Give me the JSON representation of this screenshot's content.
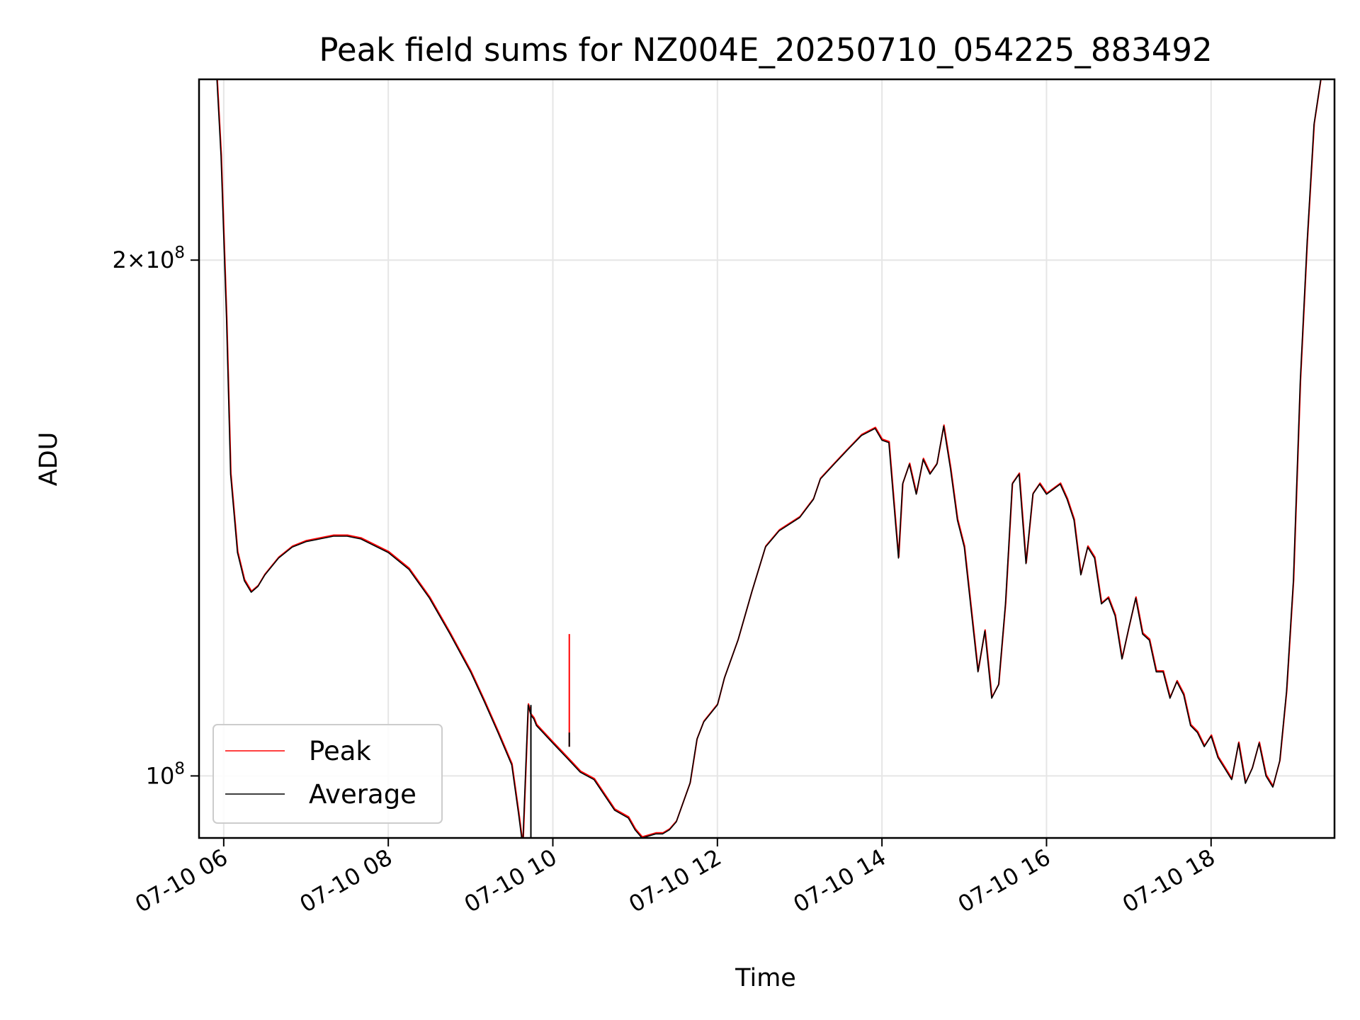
{
  "chart_data": {
    "type": "line",
    "title": "Peak field sums for NZ004E_20250710_054225_883492",
    "xlabel": "Time",
    "ylabel": "ADU",
    "yscale": "log",
    "xlim": [
      "2025-07-10T05:42",
      "2025-07-10T19:30"
    ],
    "ylim": [
      92000000,
      255000000
    ],
    "grid": true,
    "legend_position": "lower-left",
    "x_ticks": [
      "07-10 06",
      "07-10 08",
      "07-10 10",
      "07-10 12",
      "07-10 14",
      "07-10 16",
      "07-10 18"
    ],
    "x_tick_times": [
      "2025-07-10T06:00",
      "2025-07-10T08:00",
      "2025-07-10T10:00",
      "2025-07-10T12:00",
      "2025-07-10T14:00",
      "2025-07-10T16:00",
      "2025-07-10T18:00"
    ],
    "y_ticks": [
      {
        "value": 200000000,
        "mantissa": "2",
        "exp": "8"
      },
      {
        "value": 100000000,
        "mantissa": "",
        "exp": "8"
      }
    ],
    "x": [
      "05:55",
      "05:58",
      "06:02",
      "06:05",
      "06:10",
      "06:15",
      "06:20",
      "06:25",
      "06:30",
      "06:40",
      "06:50",
      "07:00",
      "07:10",
      "07:20",
      "07:30",
      "07:40",
      "08:00",
      "08:15",
      "08:30",
      "08:45",
      "09:00",
      "09:10",
      "09:20",
      "09:30",
      "09:35",
      "09:38",
      "09:42",
      "09:44",
      "09:46",
      "09:48",
      "10:00",
      "10:10",
      "10:20",
      "10:30",
      "10:45",
      "10:55",
      "11:00",
      "11:05",
      "11:15",
      "11:20",
      "11:25",
      "11:30",
      "11:40",
      "11:45",
      "11:50",
      "12:00",
      "12:05",
      "12:15",
      "12:25",
      "12:35",
      "12:45",
      "13:00",
      "13:10",
      "13:15",
      "13:25",
      "13:35",
      "13:45",
      "13:55",
      "14:00",
      "14:05",
      "14:10",
      "14:12",
      "14:15",
      "14:20",
      "14:25",
      "14:30",
      "14:35",
      "14:40",
      "14:45",
      "14:50",
      "14:55",
      "15:00",
      "15:05",
      "15:10",
      "15:15",
      "15:20",
      "15:25",
      "15:30",
      "15:35",
      "15:40",
      "15:45",
      "15:50",
      "15:55",
      "16:00",
      "16:05",
      "16:10",
      "16:15",
      "16:20",
      "16:25",
      "16:30",
      "16:35",
      "16:40",
      "16:45",
      "16:50",
      "16:55",
      "17:00",
      "17:05",
      "17:10",
      "17:15",
      "17:20",
      "17:25",
      "17:30",
      "17:35",
      "17:40",
      "17:45",
      "17:50",
      "17:55",
      "18:00",
      "18:05",
      "18:10",
      "18:15",
      "18:20",
      "18:25",
      "18:30",
      "18:35",
      "18:40",
      "18:45",
      "18:50",
      "18:55",
      "19:00",
      "19:05",
      "19:10",
      "19:15",
      "19:20",
      "19:25"
    ],
    "series": [
      {
        "name": "Peak",
        "color": "#ff0000",
        "values": [
          255000000,
          230000000,
          185000000,
          150000000,
          135000000,
          130000000,
          128000000,
          129000000,
          131000000,
          134000000,
          136000000,
          137000000,
          137500000,
          138000000,
          138000000,
          137500000,
          135000000,
          132000000,
          127000000,
          121000000,
          115000000,
          110500000,
          106000000,
          101500000,
          95000000,
          91000000,
          110000000,
          108500000,
          108000000,
          107000000,
          104500000,
          102500000,
          100500000,
          99500000,
          95500000,
          94500000,
          93000000,
          92000000,
          92500000,
          92500000,
          93000000,
          94000000,
          99000000,
          105000000,
          107500000,
          110000000,
          114000000,
          120000000,
          128000000,
          136000000,
          139000000,
          141500000,
          145000000,
          149000000,
          152000000,
          155000000,
          158000000,
          159500000,
          157000000,
          156500000,
          140000000,
          134000000,
          148000000,
          152000000,
          146000000,
          153000000,
          150000000,
          152000000,
          160000000,
          151000000,
          141000000,
          136000000,
          125000000,
          115000000,
          121500000,
          111000000,
          113000000,
          126000000,
          148000000,
          150000000,
          133000000,
          146000000,
          148000000,
          146000000,
          147000000,
          148000000,
          145000000,
          141000000,
          131000000,
          136000000,
          134000000,
          126000000,
          127000000,
          124000000,
          117000000,
          122000000,
          127000000,
          121000000,
          120000000,
          115000000,
          115000000,
          111000000,
          113500000,
          111500000,
          107000000,
          106000000,
          104000000,
          105500000,
          102500000,
          101000000,
          99500000,
          104500000,
          99000000,
          101000000,
          104500000,
          100000000,
          98500000,
          102000000,
          112000000,
          130000000,
          170000000,
          205000000,
          240000000,
          255000000,
          255000000
        ]
      },
      {
        "name": "Average",
        "color": "#000000",
        "values": [
          255000000,
          230000000,
          185000000,
          150000000,
          135000000,
          130000000,
          128000000,
          129000000,
          131000000,
          134000000,
          136000000,
          137000000,
          137500000,
          138000000,
          138000000,
          137500000,
          135000000,
          132000000,
          127000000,
          121000000,
          115000000,
          110500000,
          106000000,
          101500000,
          95000000,
          91000000,
          110000000,
          108500000,
          108000000,
          107000000,
          104500000,
          102500000,
          100500000,
          99500000,
          95500000,
          94500000,
          93000000,
          92000000,
          92500000,
          92500000,
          93000000,
          94000000,
          99000000,
          105000000,
          107500000,
          110000000,
          114000000,
          120000000,
          128000000,
          136000000,
          139000000,
          141500000,
          145000000,
          149000000,
          152000000,
          155000000,
          158000000,
          159500000,
          157000000,
          156500000,
          140000000,
          134000000,
          148000000,
          152000000,
          146000000,
          153000000,
          150000000,
          152000000,
          160000000,
          151000000,
          141000000,
          136000000,
          125000000,
          115000000,
          121500000,
          111000000,
          113000000,
          126000000,
          148000000,
          150000000,
          133000000,
          146000000,
          148000000,
          146000000,
          147000000,
          148000000,
          145000000,
          141000000,
          131000000,
          136000000,
          134000000,
          126000000,
          127000000,
          124000000,
          117000000,
          122000000,
          127000000,
          121000000,
          120000000,
          115000000,
          115000000,
          111000000,
          113500000,
          111500000,
          107000000,
          106000000,
          104000000,
          105500000,
          102500000,
          101000000,
          99500000,
          104500000,
          99000000,
          101000000,
          104500000,
          100000000,
          98500000,
          102000000,
          112000000,
          130000000,
          170000000,
          205000000,
          240000000,
          255000000,
          255000000
        ]
      }
    ],
    "spikes": [
      {
        "series": "Peak",
        "x": "10:12",
        "y_from": 104000000,
        "y_to": 121000000
      },
      {
        "series": "Average",
        "x": "10:12",
        "y_from": 104000000,
        "y_to": 106000000
      },
      {
        "series": "Average",
        "x": "09:44",
        "y_from": 91000000,
        "y_to": 110000000
      }
    ]
  }
}
